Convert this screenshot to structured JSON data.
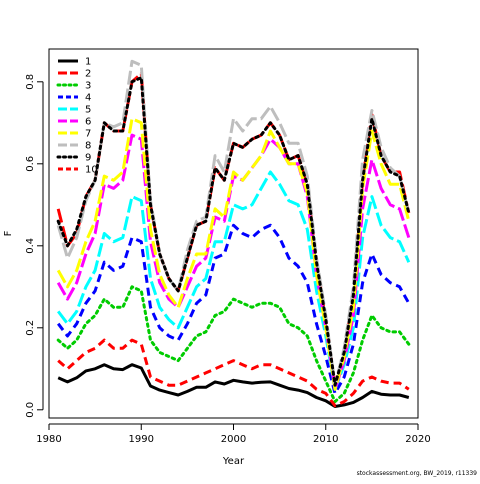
{
  "chart_data": {
    "type": "line",
    "xlabel": "Year",
    "ylabel": "F",
    "xlim": [
      1980,
      2020
    ],
    "ylim": [
      -0.02,
      0.88
    ],
    "xticks": [
      1980,
      1990,
      2000,
      2010,
      2020
    ],
    "yticks": [
      0.0,
      0.2,
      0.4,
      0.6,
      0.8
    ],
    "grid": false,
    "legend_position": "top-left",
    "x": [
      1981,
      1982,
      1983,
      1984,
      1985,
      1986,
      1987,
      1988,
      1989,
      1990,
      1991,
      1992,
      1993,
      1994,
      1995,
      1996,
      1997,
      1998,
      1999,
      2000,
      2001,
      2002,
      2003,
      2004,
      2005,
      2006,
      2007,
      2008,
      2009,
      2010,
      2011,
      2012,
      2013,
      2014,
      2015,
      2016,
      2017,
      2018,
      2019
    ],
    "series": [
      {
        "name": "1",
        "color": "#000000",
        "dash": "solid",
        "width": 3,
        "values": [
          0.078,
          0.068,
          0.078,
          0.095,
          0.1,
          0.11,
          0.1,
          0.098,
          0.11,
          0.102,
          0.058,
          0.048,
          0.042,
          0.036,
          0.045,
          0.055,
          0.055,
          0.068,
          0.063,
          0.072,
          0.068,
          0.065,
          0.067,
          0.068,
          0.06,
          0.052,
          0.048,
          0.042,
          0.03,
          0.022,
          0.008,
          0.012,
          0.018,
          0.03,
          0.045,
          0.038,
          0.036,
          0.036,
          0.03
        ]
      },
      {
        "name": "2",
        "color": "#ff0000",
        "dash": "long",
        "width": 3,
        "values": [
          0.49,
          0.4,
          0.43,
          0.52,
          0.56,
          0.7,
          0.68,
          0.68,
          0.8,
          0.82,
          0.5,
          0.38,
          0.32,
          0.29,
          0.37,
          0.45,
          0.46,
          0.59,
          0.56,
          0.65,
          0.64,
          0.66,
          0.67,
          0.7,
          0.67,
          0.61,
          0.62,
          0.55,
          0.36,
          0.22,
          0.06,
          0.14,
          0.28,
          0.56,
          0.72,
          0.62,
          0.58,
          0.58,
          0.48
        ]
      },
      {
        "name": "3",
        "color": "#00cc00",
        "dash": "dot",
        "width": 3,
        "values": [
          0.17,
          0.15,
          0.17,
          0.21,
          0.23,
          0.27,
          0.25,
          0.25,
          0.3,
          0.29,
          0.17,
          0.14,
          0.13,
          0.12,
          0.15,
          0.18,
          0.19,
          0.23,
          0.24,
          0.27,
          0.26,
          0.25,
          0.26,
          0.26,
          0.25,
          0.21,
          0.2,
          0.18,
          0.12,
          0.07,
          0.02,
          0.04,
          0.09,
          0.17,
          0.23,
          0.2,
          0.19,
          0.19,
          0.16
        ]
      },
      {
        "name": "4",
        "color": "#0000ff",
        "dash": "dash",
        "width": 3,
        "values": [
          0.21,
          0.18,
          0.21,
          0.26,
          0.29,
          0.36,
          0.34,
          0.35,
          0.42,
          0.41,
          0.25,
          0.2,
          0.18,
          0.17,
          0.21,
          0.26,
          0.28,
          0.37,
          0.38,
          0.45,
          0.43,
          0.42,
          0.44,
          0.45,
          0.42,
          0.37,
          0.35,
          0.31,
          0.21,
          0.13,
          0.04,
          0.08,
          0.16,
          0.31,
          0.38,
          0.33,
          0.31,
          0.3,
          0.26
        ]
      },
      {
        "name": "5",
        "color": "#00ffff",
        "dash": "long",
        "width": 3,
        "values": [
          0.24,
          0.21,
          0.24,
          0.3,
          0.34,
          0.43,
          0.41,
          0.42,
          0.52,
          0.51,
          0.32,
          0.25,
          0.22,
          0.2,
          0.25,
          0.3,
          0.32,
          0.41,
          0.41,
          0.5,
          0.49,
          0.5,
          0.54,
          0.58,
          0.55,
          0.51,
          0.5,
          0.44,
          0.29,
          0.18,
          0.05,
          0.11,
          0.2,
          0.42,
          0.52,
          0.45,
          0.42,
          0.41,
          0.36
        ]
      },
      {
        "name": "6",
        "color": "#ff00ff",
        "dash": "long",
        "width": 3,
        "values": [
          0.31,
          0.27,
          0.31,
          0.38,
          0.43,
          0.55,
          0.54,
          0.56,
          0.67,
          0.66,
          0.41,
          0.31,
          0.27,
          0.25,
          0.3,
          0.35,
          0.37,
          0.47,
          0.46,
          0.57,
          0.56,
          0.59,
          0.62,
          0.66,
          0.64,
          0.6,
          0.6,
          0.52,
          0.33,
          0.2,
          0.05,
          0.12,
          0.23,
          0.49,
          0.61,
          0.54,
          0.5,
          0.49,
          0.42
        ]
      },
      {
        "name": "7",
        "color": "#ffff00",
        "dash": "long",
        "width": 3,
        "values": [
          0.34,
          0.3,
          0.34,
          0.41,
          0.46,
          0.57,
          0.56,
          0.58,
          0.71,
          0.7,
          0.44,
          0.33,
          0.28,
          0.25,
          0.32,
          0.38,
          0.38,
          0.49,
          0.47,
          0.58,
          0.56,
          0.59,
          0.62,
          0.68,
          0.64,
          0.6,
          0.6,
          0.53,
          0.33,
          0.2,
          0.05,
          0.13,
          0.25,
          0.54,
          0.68,
          0.6,
          0.55,
          0.55,
          0.46
        ]
      },
      {
        "name": "8",
        "color": "#bebebe",
        "dash": "long",
        "width": 3,
        "values": [
          0.45,
          0.37,
          0.42,
          0.51,
          0.56,
          0.7,
          0.69,
          0.7,
          0.85,
          0.84,
          0.51,
          0.38,
          0.32,
          0.29,
          0.39,
          0.46,
          0.47,
          0.62,
          0.58,
          0.71,
          0.68,
          0.71,
          0.71,
          0.74,
          0.7,
          0.65,
          0.65,
          0.57,
          0.37,
          0.23,
          0.06,
          0.15,
          0.3,
          0.61,
          0.73,
          0.64,
          0.59,
          0.57,
          0.48
        ]
      },
      {
        "name": "9",
        "color": "#000000",
        "dash": "dot",
        "width": 3,
        "values": [
          0.46,
          0.4,
          0.44,
          0.52,
          0.56,
          0.7,
          0.68,
          0.68,
          0.8,
          0.81,
          0.5,
          0.38,
          0.32,
          0.29,
          0.37,
          0.45,
          0.46,
          0.59,
          0.56,
          0.65,
          0.64,
          0.66,
          0.67,
          0.7,
          0.67,
          0.61,
          0.62,
          0.55,
          0.36,
          0.22,
          0.06,
          0.14,
          0.28,
          0.56,
          0.71,
          0.62,
          0.58,
          0.57,
          0.48
        ]
      },
      {
        "name": "10",
        "color": "#ff0000",
        "dash": "dash",
        "width": 3,
        "values": [
          0.12,
          0.1,
          0.12,
          0.14,
          0.15,
          0.17,
          0.15,
          0.15,
          0.17,
          0.16,
          0.08,
          0.07,
          0.06,
          0.06,
          0.07,
          0.08,
          0.09,
          0.1,
          0.11,
          0.12,
          0.11,
          0.1,
          0.11,
          0.11,
          0.1,
          0.09,
          0.08,
          0.07,
          0.05,
          0.04,
          0.01,
          0.02,
          0.04,
          0.07,
          0.08,
          0.07,
          0.065,
          0.065,
          0.05
        ]
      }
    ]
  },
  "footnote": "stockassessment.org, BW_2019, r11339"
}
